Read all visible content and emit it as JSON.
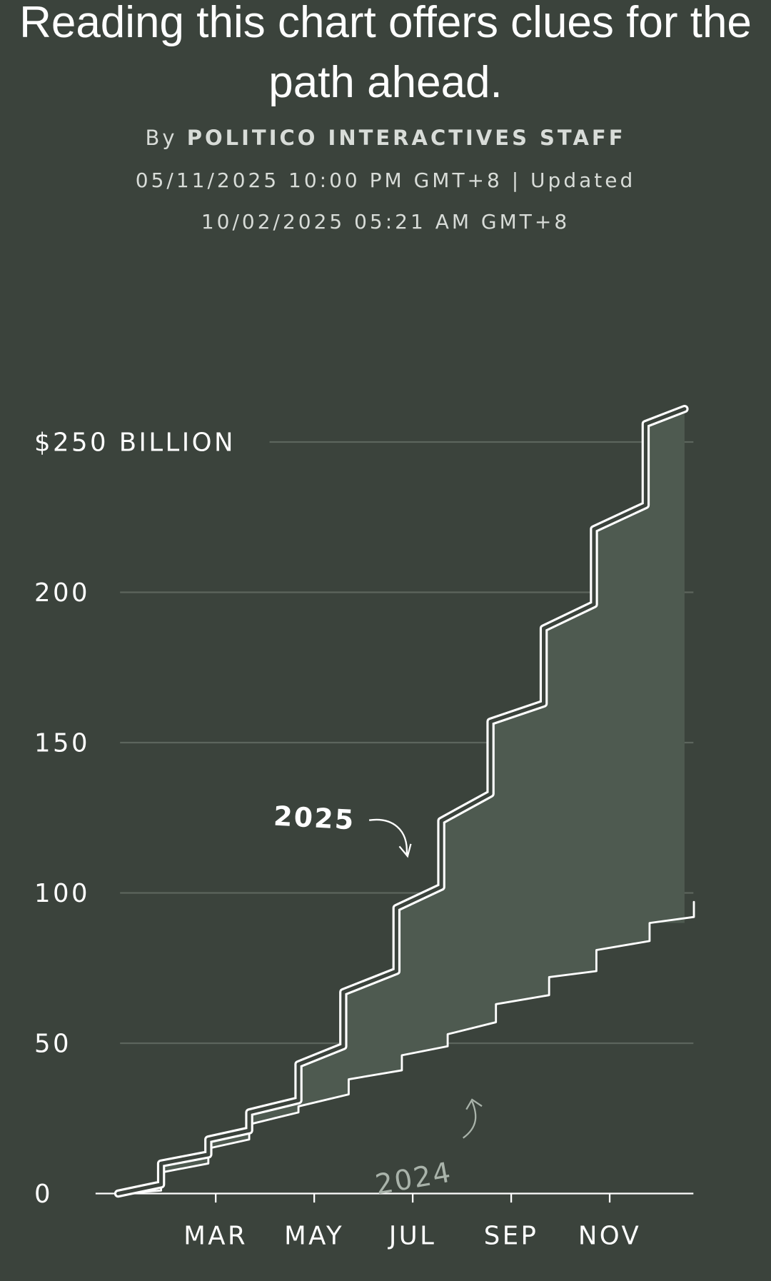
{
  "header": {
    "title": "Reading this chart offers clues for the path ahead.",
    "byline_prefix": "By",
    "author": "POLITICO INTERACTIVES STAFF",
    "dateline": "05/11/2025 10:00 PM GMT+8 | Updated 10/02/2025 05:21 AM GMT+8"
  },
  "chart_data": {
    "type": "line",
    "xlim": [
      -0.44,
      11.7
    ],
    "xticks": [
      {
        "value": 2,
        "label": "MAR"
      },
      {
        "value": 4,
        "label": "MAY"
      },
      {
        "value": 6,
        "label": "JUL"
      },
      {
        "value": 8,
        "label": "SEP"
      },
      {
        "value": 10,
        "label": "NOV"
      }
    ],
    "ylim": [
      0,
      250
    ],
    "yticks": [
      0,
      50,
      100,
      150,
      200,
      {
        "value": 250,
        "label": "$250 BILLION"
      }
    ],
    "grid": true,
    "series": [
      {
        "name": "2025",
        "color": "#ffffff",
        "x": [
          0.02,
          0.89,
          0.89,
          1.85,
          1.85,
          2.68,
          2.68,
          3.68,
          3.68,
          4.59,
          4.59,
          5.67,
          5.67,
          6.58,
          6.58,
          7.58,
          7.58,
          8.66,
          8.66,
          9.68,
          9.68,
          10.73,
          10.73,
          11.52
        ],
        "values": [
          0,
          3,
          10,
          13,
          18,
          21,
          27,
          31,
          43,
          49,
          67,
          74,
          95,
          102,
          124,
          133,
          157,
          163,
          188,
          196,
          221,
          229,
          256,
          261
        ]
      },
      {
        "name": "2024",
        "color": "#ffffff",
        "x": [
          0.02,
          0.89,
          0.89,
          1.85,
          1.85,
          2.68,
          2.68,
          3.68,
          3.68,
          4.7,
          4.7,
          5.78,
          5.78,
          6.71,
          6.71,
          7.69,
          7.69,
          8.77,
          8.77,
          9.73,
          9.73,
          10.81,
          10.81,
          11.71,
          11.71
        ],
        "values": [
          0,
          1,
          7,
          10,
          15,
          18,
          23,
          27,
          29,
          33,
          38,
          41,
          46,
          49,
          53,
          57,
          63,
          66,
          72,
          74,
          81,
          84,
          90,
          92,
          97
        ]
      }
    ]
  }
}
